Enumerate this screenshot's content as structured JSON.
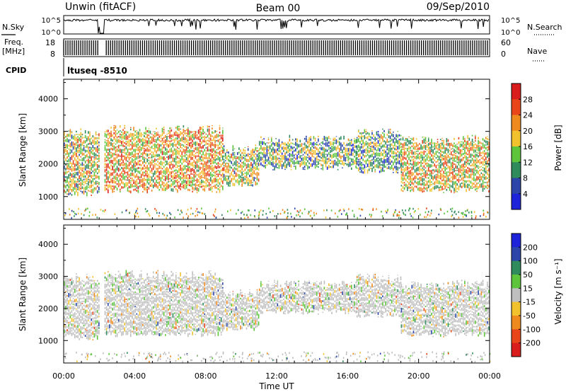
{
  "header": {
    "station": "Unwin (fitACF)",
    "beam": "Beam 00",
    "date": "09/Sep/2010"
  },
  "noise_panel": {
    "left_label": "N.Sky",
    "left_ticks": [
      "10^5",
      "10^0"
    ],
    "right_label": "N.Search",
    "right_ticks": [
      "10^5",
      "10^0"
    ]
  },
  "freq_panel": {
    "left_label_top": "Freq.",
    "left_label_bottom": "[MHz]",
    "left_ticks": [
      "18",
      "8"
    ],
    "right_label": "Nave",
    "right_ticks": [
      "60",
      "0"
    ]
  },
  "cpid_panel": {
    "label": "CPID",
    "program": "ltuseq -8510"
  },
  "colors": {
    "power_scale": [
      "#1c23d8",
      "#2b46a8",
      "#2f8a5c",
      "#5dc43c",
      "#f2c12e",
      "#ef8a1f",
      "#e8461a",
      "#d91c1c"
    ],
    "velocity_scale": [
      "#d91c1c",
      "#e8461a",
      "#ef8a1f",
      "#f2c12e",
      "#bfbfbf",
      "#5dc43c",
      "#2f8a5c",
      "#2b46a8",
      "#1c23d8"
    ]
  },
  "chart_data": [
    {
      "type": "heatmap",
      "quantity": "Power",
      "ylabel": "Slant Range [km]",
      "yticks": [
        1000,
        2000,
        3000,
        4000
      ],
      "ylim": [
        300,
        4600
      ],
      "xlim_hours": [
        0,
        24
      ],
      "colorbar": {
        "label": "Power [dB]",
        "ticks": [
          "4",
          "8",
          "12",
          "16",
          "20",
          "24",
          "28"
        ],
        "range": [
          0,
          32
        ]
      },
      "echo_regions": [
        {
          "start_h": 0.0,
          "end_h": 2.0,
          "range_min_km": 1000,
          "range_max_km": 3100,
          "level": 0.35
        },
        {
          "start_h": 2.3,
          "end_h": 9.0,
          "range_min_km": 1100,
          "range_max_km": 3200,
          "level": 0.55
        },
        {
          "start_h": 9.0,
          "end_h": 11.0,
          "range_min_km": 1300,
          "range_max_km": 2600,
          "level": 0.3
        },
        {
          "start_h": 11.0,
          "end_h": 16.5,
          "range_min_km": 1800,
          "range_max_km": 2900,
          "level": 0.15
        },
        {
          "start_h": 16.5,
          "end_h": 19.0,
          "range_min_km": 1700,
          "range_max_km": 3100,
          "level": 0.15
        },
        {
          "start_h": 19.0,
          "end_h": 24.0,
          "range_min_km": 1100,
          "range_max_km": 2900,
          "level": 0.45
        }
      ]
    },
    {
      "type": "heatmap",
      "quantity": "Velocity",
      "ylabel": "Slant Range [km]",
      "yticks": [
        1000,
        2000,
        3000,
        4000
      ],
      "ylim": [
        300,
        4600
      ],
      "xlabel": "Time UT",
      "xticks": [
        "00:00",
        "04:00",
        "08:00",
        "12:00",
        "16:00",
        "20:00",
        "00:00"
      ],
      "xlim_hours": [
        0,
        24
      ],
      "colorbar": {
        "label": "Velocity [m s⁻¹]",
        "ticks": [
          "200",
          "100",
          "50",
          "15",
          "-15",
          "-50",
          "-100",
          "-200"
        ],
        "range": [
          -250,
          250
        ]
      },
      "echo_regions": [
        {
          "start_h": 0.0,
          "end_h": 2.0,
          "range_min_km": 1000,
          "range_max_km": 3100,
          "level": 0.5
        },
        {
          "start_h": 2.3,
          "end_h": 9.0,
          "range_min_km": 1100,
          "range_max_km": 3200,
          "level": 0.5
        },
        {
          "start_h": 9.0,
          "end_h": 11.0,
          "range_min_km": 1300,
          "range_max_km": 2600,
          "level": 0.5
        },
        {
          "start_h": 11.0,
          "end_h": 16.5,
          "range_min_km": 1800,
          "range_max_km": 2900,
          "level": 0.5
        },
        {
          "start_h": 16.5,
          "end_h": 19.0,
          "range_min_km": 1700,
          "range_max_km": 3100,
          "level": 0.5
        },
        {
          "start_h": 19.0,
          "end_h": 24.0,
          "range_min_km": 1100,
          "range_max_km": 2900,
          "level": 0.5
        }
      ]
    }
  ]
}
